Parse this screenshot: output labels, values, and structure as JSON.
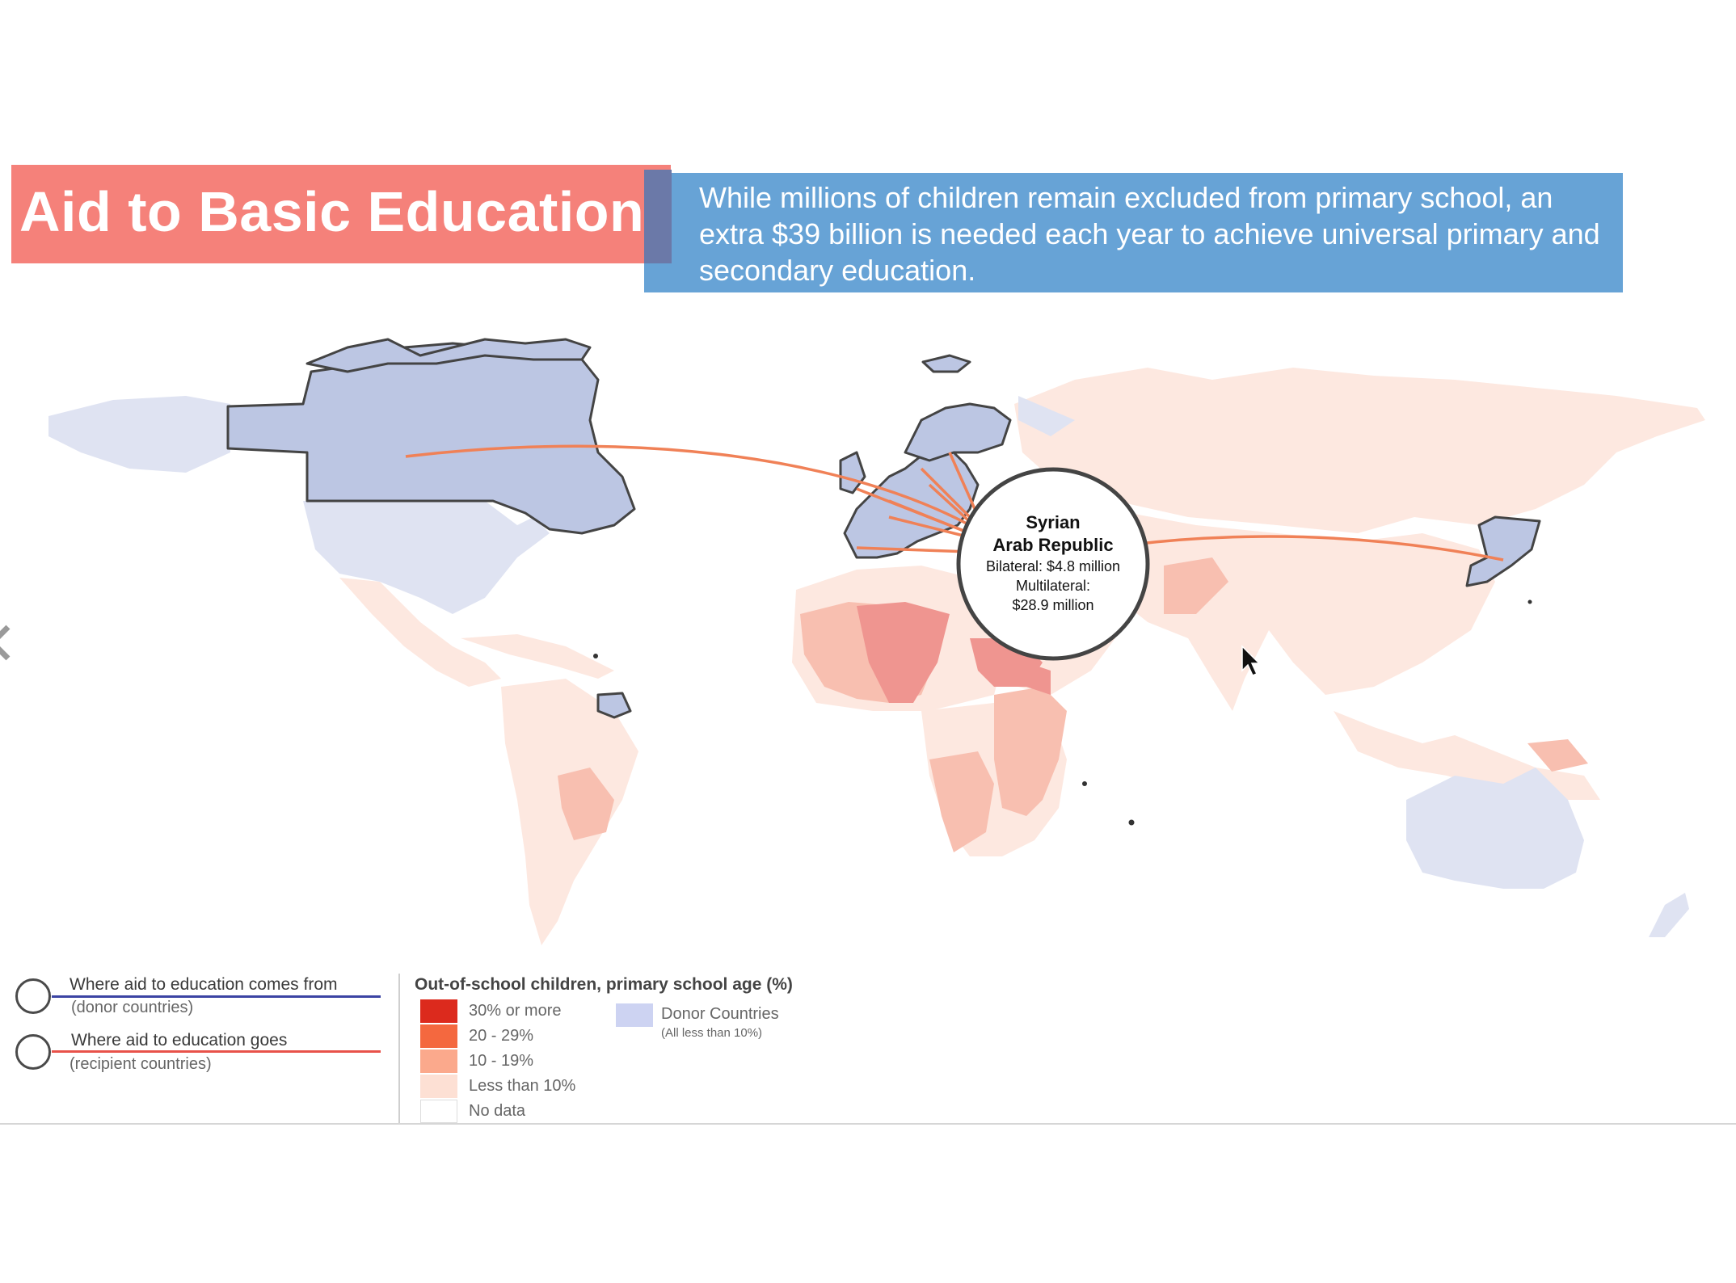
{
  "header": {
    "title": "Aid to Basic Education",
    "intro": "While millions of children remain excluded from primary school, an extra $39 billion is needed each year to achieve universal primary and secondary education."
  },
  "tooltip": {
    "name_line1": "Syrian",
    "name_line2": "Arab Republic",
    "bilateral": "Bilateral: $4.8 million",
    "multilateral_label": "Multilateral:",
    "multilateral_value": "$28.9 million"
  },
  "legend_flow": {
    "from_title": "Where aid to education comes from",
    "from_sub": "(donor countries)",
    "goes_title": "Where aid to education  goes",
    "goes_sub": "(recipient countries)",
    "from_color": "#3b44a3",
    "goes_color": "#e8524a"
  },
  "legend_key": {
    "title": "Out-of-school children, primary school age (%)",
    "items": [
      {
        "label": "30% or more",
        "color": "#dc2a1d"
      },
      {
        "label": "20 - 29%",
        "color": "#f4683f"
      },
      {
        "label": "10 - 19%",
        "color": "#fba98c"
      },
      {
        "label": "Less than 10%",
        "color": "#fde0d4"
      },
      {
        "label": "No data",
        "color": "#ffffff"
      }
    ],
    "donor_label": "Donor Countries",
    "donor_sub": "(All less than 10%)",
    "donor_color": "#cdd3f2"
  },
  "map_colors": {
    "donor": "#dfe3f2",
    "donor_highlight": "#bcc6e3",
    "low": "#fde8e0",
    "mid": "#f8bfb0",
    "high": "#ef9590",
    "flow": "#f08157",
    "border": "#444444"
  },
  "icons": {
    "cursor": "cursor-arrow-icon",
    "prev": "chevron-left-icon"
  }
}
